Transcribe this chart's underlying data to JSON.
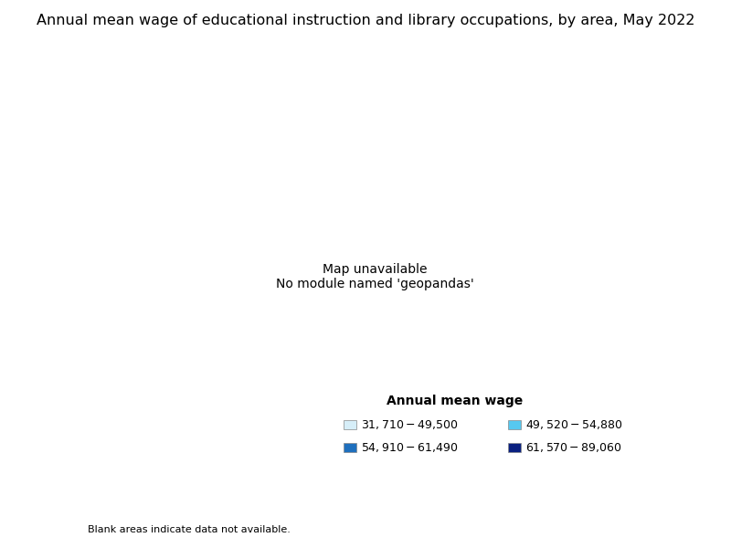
{
  "title": "Annual mean wage of educational instruction and library occupations, by area, May 2022",
  "legend_title": "Annual mean wage",
  "legend_items": [
    {
      "label": "$31,710 - $49,500",
      "color": "#d6eef8"
    },
    {
      "label": "$49,520 - $54,880",
      "color": "#56c8f0"
    },
    {
      "label": "$54,910 - $61,490",
      "color": "#1e6fbd"
    },
    {
      "label": "$61,570 - $89,060",
      "color": "#0a2080"
    }
  ],
  "blank_note": "Blank areas indicate data not available.",
  "background_color": "#ffffff",
  "title_fontsize": 11.5,
  "legend_fontsize": 9,
  "colors": {
    "bin1": "#d6eef8",
    "bin2": "#56c8f0",
    "bin3": "#1e6fbd",
    "bin4": "#0a2080",
    "no_data": "#f0f0f0"
  },
  "bins": [
    49500,
    54880,
    61490,
    89060
  ]
}
